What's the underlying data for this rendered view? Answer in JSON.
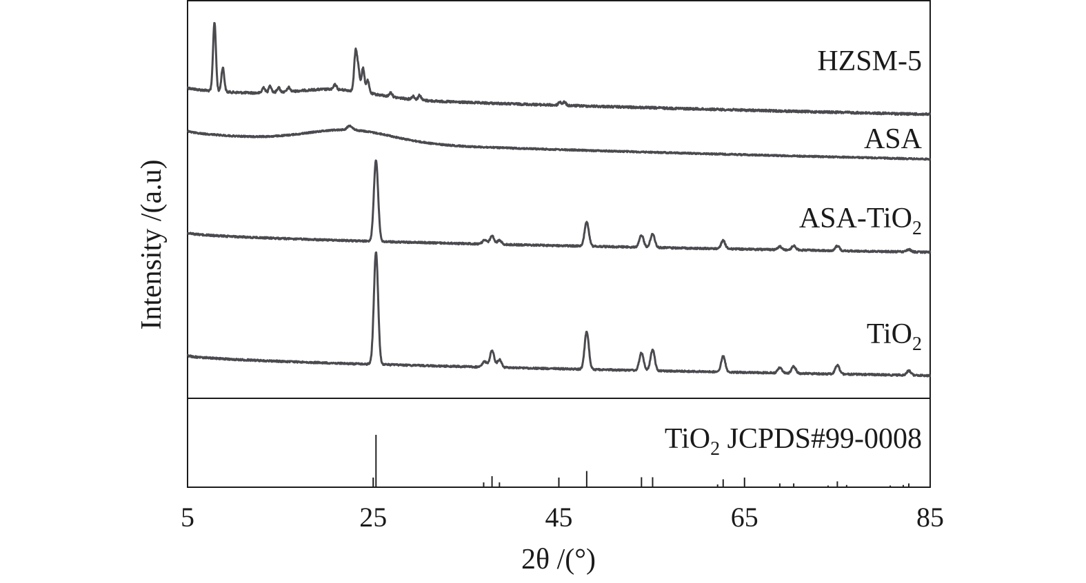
{
  "chart_data": {
    "type": "line",
    "xlabel": "2θ /(°)",
    "ylabel": "Intensity /(a.u)",
    "xlim": [
      5,
      85
    ],
    "x_ticks": [
      5,
      25,
      45,
      65,
      85
    ],
    "grid": false,
    "colors": {
      "trace": "#4a4a4f",
      "axis": "#1a1a1a"
    },
    "series": [
      {
        "name": "HZSM-5",
        "peaks": [
          [
            7.9,
            100
          ],
          [
            8.8,
            35
          ],
          [
            13.2,
            8
          ],
          [
            13.9,
            10
          ],
          [
            14.8,
            7
          ],
          [
            15.9,
            6
          ],
          [
            20.9,
            7
          ],
          [
            23.1,
            55
          ],
          [
            23.4,
            30
          ],
          [
            23.9,
            35
          ],
          [
            24.4,
            18
          ],
          [
            26.9,
            6
          ],
          [
            29.3,
            5
          ],
          [
            30.0,
            7
          ],
          [
            45.1,
            5
          ],
          [
            45.6,
            5
          ]
        ]
      },
      {
        "name": "ASA",
        "peaks": [
          [
            22.5,
            6
          ]
        ]
      },
      {
        "name": "ASA-TiO",
        "sub": "2",
        "peaks": [
          [
            25.3,
            100
          ],
          [
            37.0,
            5
          ],
          [
            37.8,
            10
          ],
          [
            38.6,
            5
          ],
          [
            48.0,
            30
          ],
          [
            53.9,
            15
          ],
          [
            55.1,
            17
          ],
          [
            62.7,
            10
          ],
          [
            68.8,
            4
          ],
          [
            70.3,
            5
          ],
          [
            75.0,
            6
          ],
          [
            82.7,
            3
          ]
        ]
      },
      {
        "name": "TiO",
        "sub": "2",
        "peaks": [
          [
            25.3,
            100
          ],
          [
            37.0,
            5
          ],
          [
            37.8,
            15
          ],
          [
            38.6,
            7
          ],
          [
            48.0,
            34
          ],
          [
            53.9,
            16
          ],
          [
            55.1,
            19
          ],
          [
            62.7,
            14
          ],
          [
            68.8,
            5
          ],
          [
            70.3,
            6
          ],
          [
            75.0,
            8
          ],
          [
            82.7,
            4
          ]
        ]
      }
    ],
    "reference": {
      "name_main": "TiO",
      "name_sub": "2",
      "name_rest": " JCPDS#99-0008",
      "lines": [
        [
          25.3,
          100
        ],
        [
          36.9,
          8
        ],
        [
          37.8,
          20
        ],
        [
          38.6,
          8
        ],
        [
          48.0,
          30
        ],
        [
          53.9,
          18
        ],
        [
          55.1,
          18
        ],
        [
          62.1,
          4
        ],
        [
          62.7,
          14
        ],
        [
          68.8,
          6
        ],
        [
          70.3,
          6
        ],
        [
          74.0,
          2
        ],
        [
          75.0,
          10
        ],
        [
          76.0,
          3
        ],
        [
          80.7,
          2
        ],
        [
          82.1,
          3
        ],
        [
          82.7,
          6
        ]
      ]
    }
  }
}
